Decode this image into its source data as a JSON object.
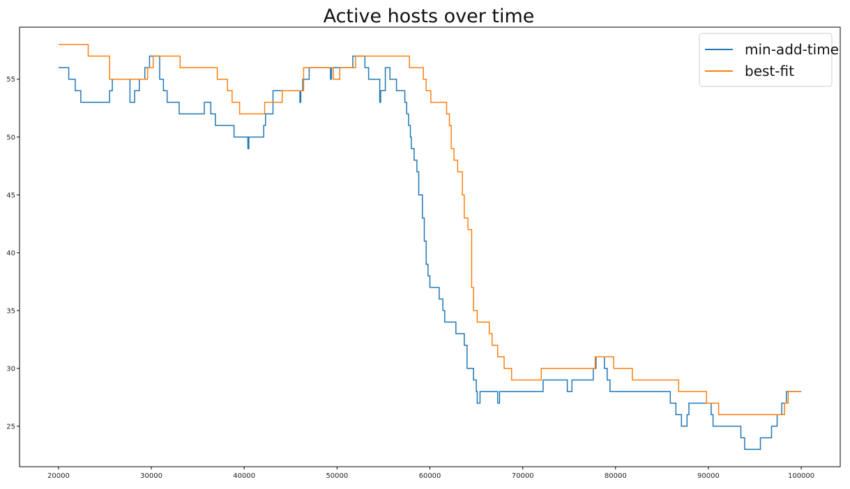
{
  "chart_data": {
    "type": "line",
    "title": "Active hosts over time",
    "xlabel": "",
    "ylabel": "",
    "xlim": [
      15800,
      104200
    ],
    "ylim": [
      21.5,
      59.5
    ],
    "x_ticks": [
      20000,
      30000,
      40000,
      50000,
      60000,
      70000,
      80000,
      90000,
      100000
    ],
    "y_ticks": [
      25,
      30,
      35,
      40,
      45,
      50,
      55
    ],
    "grid": false,
    "legend_position": "top-right",
    "series": [
      {
        "name": "min-add-time",
        "color": "#1f77b4",
        "step": "post",
        "points": [
          [
            20000,
            56
          ],
          [
            21100,
            55
          ],
          [
            21800,
            54
          ],
          [
            22400,
            53
          ],
          [
            25500,
            54
          ],
          [
            25800,
            55
          ],
          [
            27700,
            53
          ],
          [
            28200,
            54
          ],
          [
            28700,
            55
          ],
          [
            29300,
            56
          ],
          [
            29800,
            57
          ],
          [
            30900,
            55
          ],
          [
            31300,
            54
          ],
          [
            31700,
            53
          ],
          [
            33000,
            52
          ],
          [
            35700,
            53
          ],
          [
            36400,
            52
          ],
          [
            36900,
            51
          ],
          [
            38900,
            50
          ],
          [
            40400,
            49
          ],
          [
            40500,
            50
          ],
          [
            42100,
            51
          ],
          [
            42300,
            52
          ],
          [
            43100,
            54
          ],
          [
            46000,
            53
          ],
          [
            46100,
            54
          ],
          [
            46300,
            55
          ],
          [
            47000,
            56
          ],
          [
            49300,
            55
          ],
          [
            49400,
            56
          ],
          [
            51700,
            57
          ],
          [
            53000,
            56
          ],
          [
            53400,
            55
          ],
          [
            54600,
            53
          ],
          [
            54700,
            54
          ],
          [
            55200,
            56
          ],
          [
            55700,
            55
          ],
          [
            56400,
            54
          ],
          [
            57300,
            53
          ],
          [
            57500,
            52
          ],
          [
            57700,
            51
          ],
          [
            57900,
            50
          ],
          [
            58000,
            49
          ],
          [
            58300,
            48
          ],
          [
            58600,
            47
          ],
          [
            58800,
            45
          ],
          [
            59200,
            43
          ],
          [
            59400,
            41
          ],
          [
            59600,
            39
          ],
          [
            59800,
            38
          ],
          [
            60000,
            37
          ],
          [
            61000,
            36
          ],
          [
            61400,
            35
          ],
          [
            61600,
            34
          ],
          [
            62800,
            33
          ],
          [
            63700,
            32
          ],
          [
            64000,
            30
          ],
          [
            64700,
            29
          ],
          [
            65000,
            28
          ],
          [
            65100,
            27
          ],
          [
            65400,
            28
          ],
          [
            67300,
            27
          ],
          [
            67500,
            28
          ],
          [
            72200,
            29
          ],
          [
            74800,
            28
          ],
          [
            75300,
            29
          ],
          [
            77600,
            30
          ],
          [
            77900,
            31
          ],
          [
            78800,
            30
          ],
          [
            79100,
            29
          ],
          [
            79400,
            28
          ],
          [
            85900,
            27
          ],
          [
            86500,
            26
          ],
          [
            87100,
            25
          ],
          [
            87700,
            26
          ],
          [
            87900,
            27
          ],
          [
            90300,
            26
          ],
          [
            90500,
            25
          ],
          [
            93500,
            24
          ],
          [
            93900,
            23
          ],
          [
            95600,
            24
          ],
          [
            96800,
            25
          ],
          [
            97400,
            26
          ],
          [
            97900,
            27
          ],
          [
            98400,
            28
          ],
          [
            100000,
            28
          ]
        ]
      },
      {
        "name": "best-fit",
        "color": "#ff7f0e",
        "step": "post",
        "points": [
          [
            20000,
            58
          ],
          [
            23200,
            57
          ],
          [
            25500,
            55
          ],
          [
            29600,
            56
          ],
          [
            30200,
            57
          ],
          [
            33100,
            56
          ],
          [
            37100,
            55
          ],
          [
            38200,
            54
          ],
          [
            38700,
            53
          ],
          [
            39500,
            52
          ],
          [
            42200,
            53
          ],
          [
            44100,
            54
          ],
          [
            46400,
            56
          ],
          [
            49600,
            55
          ],
          [
            50300,
            56
          ],
          [
            52000,
            57
          ],
          [
            57800,
            56
          ],
          [
            59300,
            55
          ],
          [
            59600,
            54
          ],
          [
            60100,
            53
          ],
          [
            61800,
            52
          ],
          [
            62100,
            51
          ],
          [
            62300,
            49
          ],
          [
            62600,
            48
          ],
          [
            63000,
            47
          ],
          [
            63500,
            45
          ],
          [
            63700,
            43
          ],
          [
            64100,
            42
          ],
          [
            64500,
            37
          ],
          [
            64700,
            35
          ],
          [
            65100,
            34
          ],
          [
            66400,
            33
          ],
          [
            66700,
            32
          ],
          [
            67300,
            31
          ],
          [
            68000,
            30
          ],
          [
            68800,
            29
          ],
          [
            72000,
            30
          ],
          [
            77800,
            31
          ],
          [
            79800,
            30
          ],
          [
            81800,
            29
          ],
          [
            86800,
            28
          ],
          [
            89800,
            27
          ],
          [
            91100,
            26
          ],
          [
            98200,
            27
          ],
          [
            98600,
            28
          ],
          [
            100000,
            28
          ]
        ]
      }
    ]
  }
}
